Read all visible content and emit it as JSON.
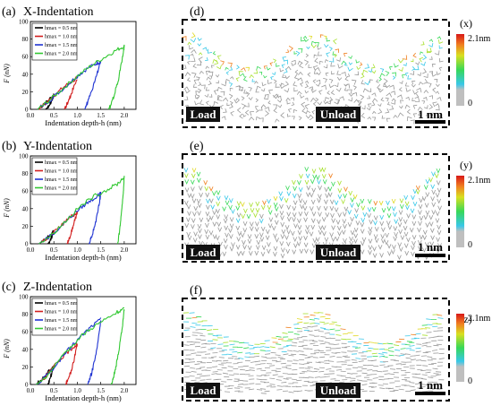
{
  "chart_data": [
    {
      "type": "line",
      "panel_label": "(a)",
      "title": "X-Indentation",
      "xlabel": "Indentation depth-h (nm)",
      "ylabel": "F (nN)",
      "xlim": [
        0,
        2.25
      ],
      "ylim": [
        0,
        100
      ],
      "xticks": [
        "0.0",
        "0.5",
        "1.0",
        "1.5",
        "2.0"
      ],
      "yticks": [
        "0",
        "20",
        "40",
        "60",
        "80",
        "100"
      ],
      "legend_position": "top-left",
      "series": [
        {
          "name": "hmax = 0.5 nm",
          "color": "#000000",
          "load": [
            [
              0.15,
              0
            ],
            [
              0.3,
              6
            ],
            [
              0.45,
              14
            ],
            [
              0.5,
              16
            ]
          ],
          "unload": [
            [
              0.5,
              16
            ],
            [
              0.45,
              9
            ],
            [
              0.38,
              3
            ],
            [
              0.32,
              0
            ]
          ]
        },
        {
          "name": "hmax = 1.0 nm",
          "color": "#d21e1e",
          "load": [
            [
              0.15,
              0
            ],
            [
              0.35,
              8
            ],
            [
              0.55,
              18
            ],
            [
              0.75,
              27
            ],
            [
              0.95,
              34
            ],
            [
              1.0,
              36
            ]
          ],
          "unload": [
            [
              1.0,
              36
            ],
            [
              0.9,
              22
            ],
            [
              0.82,
              10
            ],
            [
              0.75,
              3
            ],
            [
              0.72,
              0
            ]
          ]
        },
        {
          "name": "hmax = 1.5 nm",
          "color": "#1e32d2",
          "load": [
            [
              0.15,
              0
            ],
            [
              0.45,
              12
            ],
            [
              0.75,
              26
            ],
            [
              1.0,
              38
            ],
            [
              1.2,
              46
            ],
            [
              1.4,
              52
            ],
            [
              1.5,
              55
            ]
          ],
          "unload": [
            [
              1.5,
              55
            ],
            [
              1.42,
              40
            ],
            [
              1.32,
              22
            ],
            [
              1.22,
              8
            ],
            [
              1.16,
              0
            ]
          ]
        },
        {
          "name": "hmax = 2.0 nm",
          "color": "#32c832",
          "load": [
            [
              0.15,
              0
            ],
            [
              0.4,
              10
            ],
            [
              0.7,
              24
            ],
            [
              1.0,
              38
            ],
            [
              1.3,
              50
            ],
            [
              1.6,
              60
            ],
            [
              1.85,
              68
            ],
            [
              2.0,
              72
            ]
          ],
          "unload": [
            [
              2.0,
              72
            ],
            [
              1.95,
              55
            ],
            [
              1.88,
              35
            ],
            [
              1.78,
              15
            ],
            [
              1.7,
              3
            ],
            [
              1.66,
              0
            ]
          ]
        }
      ]
    },
    {
      "type": "line",
      "panel_label": "(b)",
      "title": "Y-Indentation",
      "xlabel": "Indentation depth-h (nm)",
      "ylabel": "F (nN)",
      "xlim": [
        0,
        2.25
      ],
      "ylim": [
        0,
        100
      ],
      "xticks": [
        "0.0",
        "0.5",
        "1.0",
        "1.5",
        "2.0"
      ],
      "yticks": [
        "0",
        "20",
        "40",
        "60",
        "80",
        "100"
      ],
      "legend_position": "top-left",
      "series": [
        {
          "name": "hmax = 0.5 nm",
          "color": "#000000",
          "load": [
            [
              0.18,
              0
            ],
            [
              0.3,
              4
            ],
            [
              0.42,
              10
            ],
            [
              0.5,
              14
            ]
          ],
          "unload": [
            [
              0.5,
              14
            ],
            [
              0.45,
              7
            ],
            [
              0.4,
              2
            ],
            [
              0.37,
              0
            ]
          ]
        },
        {
          "name": "hmax = 1.0 nm",
          "color": "#d21e1e",
          "load": [
            [
              0.18,
              0
            ],
            [
              0.4,
              8
            ],
            [
              0.6,
              18
            ],
            [
              0.8,
              28
            ],
            [
              0.95,
              34
            ],
            [
              1.0,
              36
            ]
          ],
          "unload": [
            [
              1.0,
              36
            ],
            [
              0.92,
              22
            ],
            [
              0.85,
              10
            ],
            [
              0.8,
              2
            ],
            [
              0.78,
              0
            ]
          ]
        },
        {
          "name": "hmax = 1.5 nm",
          "color": "#1e32d2",
          "load": [
            [
              0.18,
              0
            ],
            [
              0.5,
              12
            ],
            [
              0.8,
              28
            ],
            [
              1.05,
              40
            ],
            [
              1.25,
              48
            ],
            [
              1.45,
              55
            ],
            [
              1.5,
              57
            ]
          ],
          "unload": [
            [
              1.5,
              57
            ],
            [
              1.45,
              40
            ],
            [
              1.38,
              22
            ],
            [
              1.3,
              8
            ],
            [
              1.25,
              0
            ]
          ]
        },
        {
          "name": "hmax = 2.0 nm",
          "color": "#32c832",
          "load": [
            [
              0.18,
              0
            ],
            [
              0.45,
              10
            ],
            [
              0.75,
              26
            ],
            [
              1.05,
              42
            ],
            [
              1.35,
              54
            ],
            [
              1.65,
              62
            ],
            [
              1.85,
              68
            ],
            [
              2.0,
              76
            ]
          ],
          "unload": [
            [
              2.0,
              76
            ],
            [
              1.98,
              58
            ],
            [
              1.94,
              36
            ],
            [
              1.9,
              14
            ],
            [
              1.86,
              0
            ]
          ]
        }
      ]
    },
    {
      "type": "line",
      "panel_label": "(c)",
      "title": "Z-Indentation",
      "xlabel": "Indentation depth-h (nm)",
      "ylabel": "F (nN)",
      "xlim": [
        0,
        2.25
      ],
      "ylim": [
        0,
        100
      ],
      "xticks": [
        "0.0",
        "0.5",
        "1.0",
        "1.5",
        "2.0"
      ],
      "yticks": [
        "0",
        "20",
        "40",
        "60",
        "80",
        "100"
      ],
      "legend_position": "top-left",
      "series": [
        {
          "name": "hmax = 0.5 nm",
          "color": "#000000",
          "load": [
            [
              0.12,
              0
            ],
            [
              0.25,
              6
            ],
            [
              0.38,
              14
            ],
            [
              0.5,
              22
            ]
          ],
          "unload": [
            [
              0.5,
              22
            ],
            [
              0.45,
              12
            ],
            [
              0.4,
              4
            ],
            [
              0.37,
              0
            ]
          ]
        },
        {
          "name": "hmax = 1.0 nm",
          "color": "#d21e1e",
          "load": [
            [
              0.12,
              0
            ],
            [
              0.3,
              8
            ],
            [
              0.5,
              20
            ],
            [
              0.7,
              32
            ],
            [
              0.9,
              42
            ],
            [
              1.0,
              46
            ]
          ],
          "unload": [
            [
              1.0,
              46
            ],
            [
              0.93,
              28
            ],
            [
              0.85,
              12
            ],
            [
              0.78,
              3
            ],
            [
              0.75,
              0
            ]
          ]
        },
        {
          "name": "hmax = 1.5 nm",
          "color": "#1e32d2",
          "load": [
            [
              0.12,
              0
            ],
            [
              0.35,
              10
            ],
            [
              0.6,
              26
            ],
            [
              0.85,
              42
            ],
            [
              1.1,
              56
            ],
            [
              1.3,
              66
            ],
            [
              1.5,
              74
            ]
          ],
          "unload": [
            [
              1.5,
              74
            ],
            [
              1.45,
              52
            ],
            [
              1.38,
              30
            ],
            [
              1.3,
              12
            ],
            [
              1.22,
              0
            ]
          ]
        },
        {
          "name": "hmax = 2.0 nm",
          "color": "#32c832",
          "load": [
            [
              0.12,
              0
            ],
            [
              0.35,
              10
            ],
            [
              0.6,
              26
            ],
            [
              0.85,
              42
            ],
            [
              1.1,
              56
            ],
            [
              1.35,
              66
            ],
            [
              1.6,
              74
            ],
            [
              1.85,
              82
            ],
            [
              2.0,
              86
            ]
          ],
          "unload": [
            [
              2.0,
              86
            ],
            [
              1.96,
              66
            ],
            [
              1.9,
              44
            ],
            [
              1.83,
              22
            ],
            [
              1.76,
              6
            ],
            [
              1.72,
              0
            ]
          ]
        }
      ]
    }
  ],
  "snapshots": [
    {
      "panel_label": "(d)",
      "axis_label": "(x)",
      "left_label": "Load",
      "right_label": "Unload",
      "scale_bar": "1 nm",
      "colorbar_max": "2.1nm",
      "colorbar_min": "0"
    },
    {
      "panel_label": "(e)",
      "axis_label": "(y)",
      "left_label": "Load",
      "right_label": "Unload",
      "scale_bar": "1 nm",
      "colorbar_max": "2.1nm",
      "colorbar_min": "0"
    },
    {
      "panel_label": "(f)",
      "axis_label": "(z)",
      "left_label": "Load",
      "right_label": "Unload",
      "scale_bar": "1 nm",
      "colorbar_max": "2.1nm",
      "colorbar_min": "0"
    }
  ],
  "colors": {
    "frame": "#000000",
    "atom_base": "#9a9a9a",
    "label_bg": "#111111"
  }
}
